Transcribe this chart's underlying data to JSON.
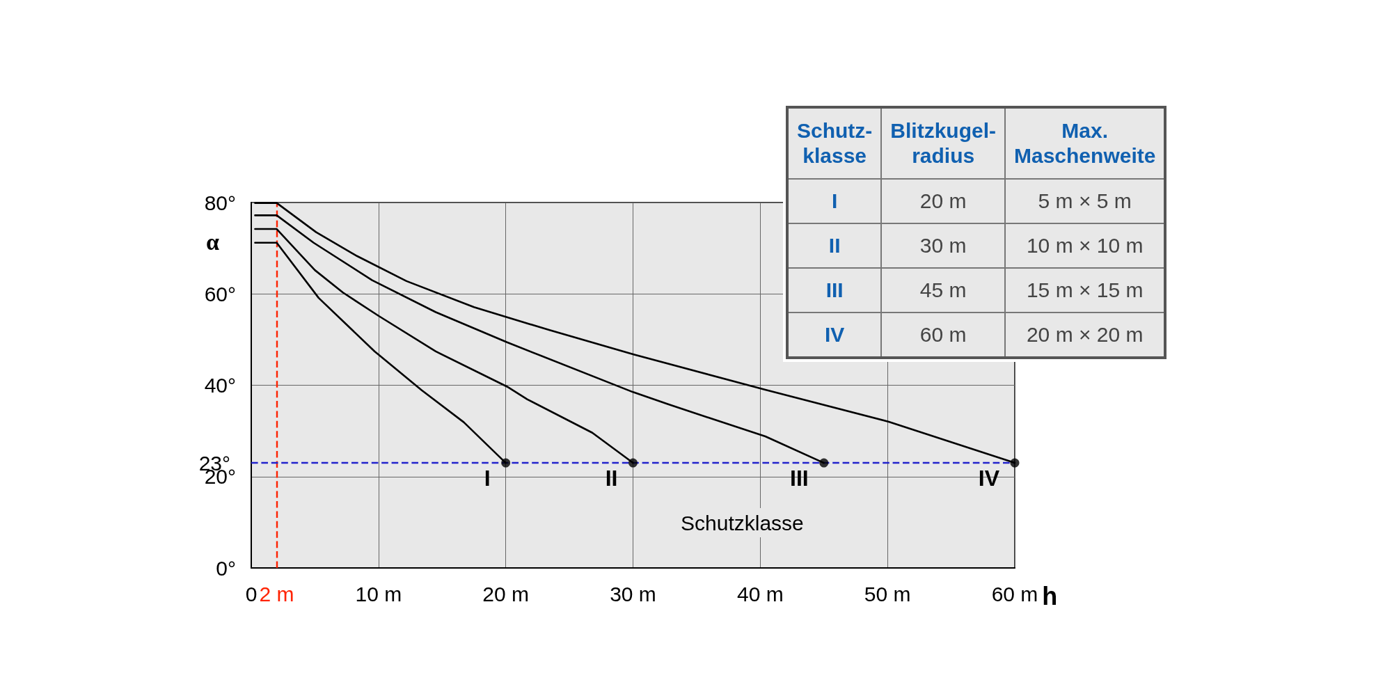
{
  "chart_data": [
    {
      "type": "line",
      "xlabel": "h",
      "ylabel": "α",
      "xlim": [
        0,
        60
      ],
      "xticks": [
        0,
        {
          "value": 10,
          "label": "10 m"
        },
        {
          "value": 20,
          "label": "20 m"
        },
        {
          "value": 30,
          "label": "30 m"
        },
        {
          "value": 40,
          "label": "40 m"
        },
        {
          "value": 50,
          "label": "50 m"
        },
        {
          "value": 60,
          "label": "60 m"
        }
      ],
      "ylim": [
        0,
        80
      ],
      "yticks": [
        {
          "value": 0,
          "label": "0°"
        },
        {
          "value": 20,
          "label": "20°"
        },
        {
          "value": 40,
          "label": "40°"
        },
        {
          "value": 60,
          "label": "60°"
        },
        {
          "value": 80,
          "label": "80°"
        }
      ],
      "grid": true,
      "line_style": "solid",
      "series": [
        {
          "name": "I",
          "color": "#000000",
          "x": [
            0.3,
            2,
            5.3,
            9.7,
            13.4,
            16.7,
            20
          ],
          "values": [
            71.2,
            71.2,
            59.1,
            47.4,
            38.9,
            31.9,
            23
          ]
        },
        {
          "name": "II",
          "color": "#000000",
          "x": [
            0.3,
            2,
            5,
            7.2,
            10,
            14.5,
            20.1,
            21.7,
            26.8,
            30
          ],
          "values": [
            74.2,
            74.2,
            65.2,
            60.3,
            55.2,
            47.4,
            39.7,
            36.9,
            29.6,
            23
          ]
        },
        {
          "name": "III",
          "color": "#000000",
          "x": [
            0.3,
            2,
            4.9,
            9.5,
            14.5,
            20.1,
            30,
            32.8,
            40.4,
            45
          ],
          "values": [
            77.2,
            77.2,
            71.2,
            63,
            56,
            49.4,
            38.5,
            35.8,
            28.8,
            23
          ]
        },
        {
          "name": "IV",
          "color": "#000000",
          "x": [
            0.3,
            2,
            5.1,
            8.3,
            12.2,
            17.5,
            23.4,
            30.1,
            40.4,
            50.1,
            60
          ],
          "values": [
            79.9,
            79.9,
            73.5,
            68.3,
            62.8,
            57.1,
            52.1,
            46.7,
            39,
            32,
            23
          ]
        },
        {
          "type": "scatter",
          "color": "#000000",
          "x": [
            20,
            30,
            45,
            60
          ],
          "values": [
            23,
            23,
            23,
            23
          ]
        }
      ],
      "ref_lines": [
        {
          "axis": "x",
          "value": 2,
          "label": "2 m",
          "color": "#ff2200",
          "line_style": "dashed"
        },
        {
          "axis": "y",
          "value": 23,
          "label": "23°",
          "color": "#2222cc",
          "line_style": "dashed"
        }
      ],
      "annotations": [
        "Schutzklasse"
      ]
    },
    {
      "type": "other",
      "categories": [
        "Schutz-\nklasse",
        "Blitzkugel-\nradius",
        "Max.\nMaschenweite"
      ],
      "cell_labels": [
        [
          "I",
          "20 m",
          "5 m × 5 m"
        ],
        [
          "II",
          "30 m",
          "10 m × 10 m"
        ],
        [
          "III",
          "45 m",
          "15 m × 15 m"
        ],
        [
          "IV",
          "60 m",
          "20 m × 20 m"
        ]
      ]
    }
  ]
}
